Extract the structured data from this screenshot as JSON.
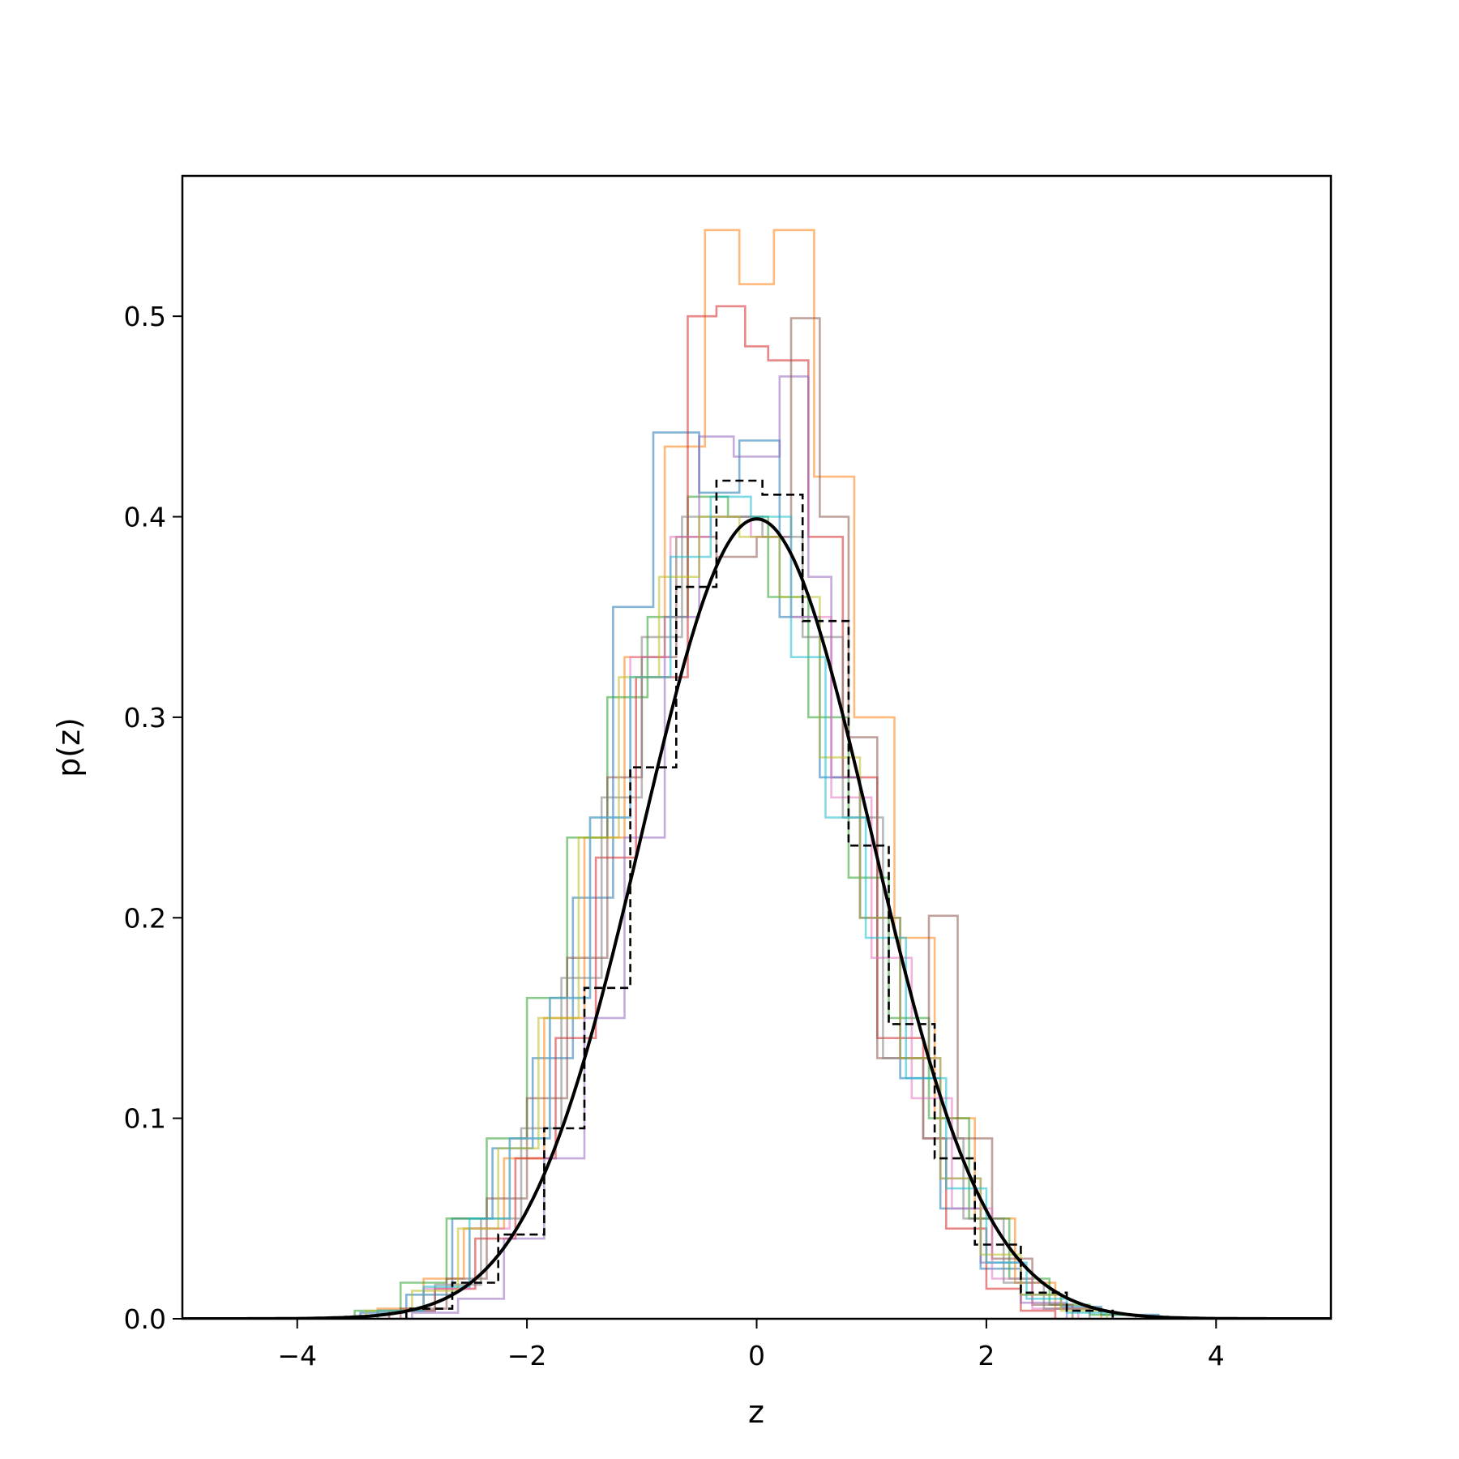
{
  "chart_data": {
    "type": "histogram",
    "title": "",
    "xlabel": "z",
    "ylabel": "p(z)",
    "xlim": [
      -5,
      5
    ],
    "ylim": [
      0,
      0.57
    ],
    "xticks": [
      -4,
      -2,
      0,
      2,
      4
    ],
    "xtick_labels": [
      "−4",
      "−2",
      "0",
      "2",
      "4"
    ],
    "yticks": [
      0.0,
      0.1,
      0.2,
      0.3,
      0.4,
      0.5
    ],
    "ytick_labels": [
      "0.0",
      "0.1",
      "0.2",
      "0.3",
      "0.4",
      "0.5"
    ],
    "grid": false,
    "legend": "none",
    "reference_curve": {
      "kind": "standard normal pdf",
      "mean": 0,
      "std": 1,
      "color": "#000000",
      "style": "solid",
      "x_range": [
        -5,
        5
      ]
    },
    "pooled_histogram": {
      "color": "#000000",
      "style": "dashed",
      "edges": [
        -3.05,
        -2.65,
        -2.25,
        -1.85,
        -1.5,
        -1.1,
        -0.7,
        -0.35,
        0.05,
        0.4,
        0.8,
        1.15,
        1.55,
        1.9,
        2.3,
        2.7,
        3.1
      ],
      "heights": [
        0.005,
        0.018,
        0.042,
        0.095,
        0.165,
        0.275,
        0.365,
        0.418,
        0.411,
        0.348,
        0.236,
        0.147,
        0.08,
        0.037,
        0.013,
        0.004
      ]
    },
    "series": [
      {
        "color": "#1f77b4",
        "edges": [
          -3.45,
          -3.05,
          -2.65,
          -2.3,
          -1.95,
          -1.6,
          -1.25,
          -0.9,
          -0.5,
          -0.15,
          0.2,
          0.55,
          0.9,
          1.25,
          1.6,
          1.95,
          2.3,
          2.65,
          3.0,
          3.5
        ],
        "heights": [
          0.003,
          0.012,
          0.05,
          0.085,
          0.13,
          0.21,
          0.355,
          0.442,
          0.412,
          0.438,
          0.35,
          0.27,
          0.2,
          0.12,
          0.055,
          0.025,
          0.012,
          0.006,
          0.002
        ]
      },
      {
        "color": "#ff7f0e",
        "edges": [
          -3.3,
          -2.9,
          -2.55,
          -2.2,
          -1.85,
          -1.5,
          -1.15,
          -0.8,
          -0.45,
          -0.15,
          0.15,
          0.5,
          0.85,
          1.2,
          1.55,
          1.9,
          2.25,
          2.6,
          3.0
        ],
        "heights": [
          0.005,
          0.02,
          0.045,
          0.08,
          0.15,
          0.24,
          0.33,
          0.435,
          0.543,
          0.516,
          0.543,
          0.42,
          0.3,
          0.19,
          0.1,
          0.05,
          0.018,
          0.005
        ]
      },
      {
        "color": "#2ca02c",
        "edges": [
          -3.5,
          -3.1,
          -2.7,
          -2.35,
          -2.0,
          -1.65,
          -1.3,
          -0.95,
          -0.6,
          -0.25,
          0.1,
          0.45,
          0.8,
          1.15,
          1.5,
          1.85,
          2.2,
          2.55,
          2.9,
          3.3
        ],
        "heights": [
          0.004,
          0.018,
          0.05,
          0.09,
          0.16,
          0.24,
          0.31,
          0.35,
          0.41,
          0.4,
          0.36,
          0.3,
          0.22,
          0.15,
          0.1,
          0.05,
          0.02,
          0.007,
          0.002
        ]
      },
      {
        "color": "#d62728",
        "edges": [
          -3.2,
          -2.8,
          -2.45,
          -2.1,
          -1.75,
          -1.4,
          -1.05,
          -0.6,
          -0.35,
          -0.1,
          0.1,
          0.45,
          0.75,
          1.05,
          1.45,
          1.65,
          2.0,
          2.3,
          2.6
        ],
        "heights": [
          0.004,
          0.015,
          0.04,
          0.08,
          0.14,
          0.23,
          0.32,
          0.5,
          0.505,
          0.485,
          0.478,
          0.39,
          0.27,
          0.14,
          0.09,
          0.045,
          0.015,
          0.004
        ]
      },
      {
        "color": "#9467bd",
        "edges": [
          -3.0,
          -2.6,
          -2.2,
          -1.85,
          -1.5,
          -1.15,
          -0.8,
          -0.5,
          -0.2,
          0.2,
          0.45,
          0.65,
          0.9,
          1.25,
          1.6,
          1.95,
          2.3,
          2.7
        ],
        "heights": [
          0.003,
          0.01,
          0.04,
          0.08,
          0.15,
          0.24,
          0.35,
          0.44,
          0.43,
          0.47,
          0.37,
          0.27,
          0.2,
          0.13,
          0.07,
          0.028,
          0.008
        ]
      },
      {
        "color": "#8c564b",
        "edges": [
          -3.1,
          -2.7,
          -2.35,
          -2.0,
          -1.65,
          -1.3,
          -1.0,
          -0.7,
          -0.35,
          0.0,
          0.3,
          0.55,
          0.8,
          1.05,
          1.5,
          1.75,
          2.05,
          2.4,
          2.75
        ],
        "heights": [
          0.005,
          0.02,
          0.06,
          0.11,
          0.18,
          0.27,
          0.33,
          0.39,
          0.38,
          0.39,
          0.499,
          0.4,
          0.29,
          0.13,
          0.201,
          0.09,
          0.03,
          0.007
        ]
      },
      {
        "color": "#e377c2",
        "edges": [
          -3.3,
          -2.9,
          -2.5,
          -2.15,
          -1.8,
          -1.45,
          -1.1,
          -0.75,
          -0.4,
          -0.05,
          0.3,
          0.65,
          1.0,
          1.35,
          1.7,
          2.05,
          2.4,
          2.8
        ],
        "heights": [
          0.004,
          0.015,
          0.045,
          0.09,
          0.16,
          0.25,
          0.33,
          0.39,
          0.4,
          0.39,
          0.35,
          0.26,
          0.18,
          0.11,
          0.055,
          0.02,
          0.005
        ]
      },
      {
        "color": "#7f7f7f",
        "edges": [
          -3.2,
          -2.8,
          -2.4,
          -2.05,
          -1.7,
          -1.35,
          -1.0,
          -0.65,
          -0.3,
          0.05,
          0.4,
          0.75,
          1.1,
          1.45,
          1.8,
          2.15,
          2.5,
          2.9
        ],
        "heights": [
          0.004,
          0.017,
          0.05,
          0.095,
          0.17,
          0.26,
          0.34,
          0.4,
          0.4,
          0.39,
          0.34,
          0.25,
          0.13,
          0.09,
          0.05,
          0.018,
          0.005
        ]
      },
      {
        "color": "#bcbd22",
        "edges": [
          -3.4,
          -3.0,
          -2.6,
          -2.25,
          -1.9,
          -1.55,
          -1.2,
          -0.85,
          -0.5,
          -0.15,
          0.2,
          0.55,
          0.9,
          1.25,
          1.6,
          1.95,
          2.3,
          2.65,
          3.05
        ],
        "heights": [
          0.004,
          0.014,
          0.045,
          0.085,
          0.15,
          0.24,
          0.32,
          0.37,
          0.4,
          0.39,
          0.36,
          0.28,
          0.2,
          0.13,
          0.07,
          0.032,
          0.012,
          0.004
        ]
      },
      {
        "color": "#17becf",
        "edges": [
          -3.3,
          -2.9,
          -2.5,
          -2.15,
          -1.8,
          -1.45,
          -1.1,
          -0.75,
          -0.4,
          -0.05,
          0.3,
          0.6,
          0.95,
          1.3,
          1.65,
          2.0,
          2.35,
          2.7,
          3.1
        ],
        "heights": [
          0.004,
          0.016,
          0.05,
          0.09,
          0.16,
          0.25,
          0.32,
          0.38,
          0.41,
          0.4,
          0.33,
          0.25,
          0.19,
          0.12,
          0.065,
          0.028,
          0.01,
          0.003
        ]
      }
    ]
  }
}
